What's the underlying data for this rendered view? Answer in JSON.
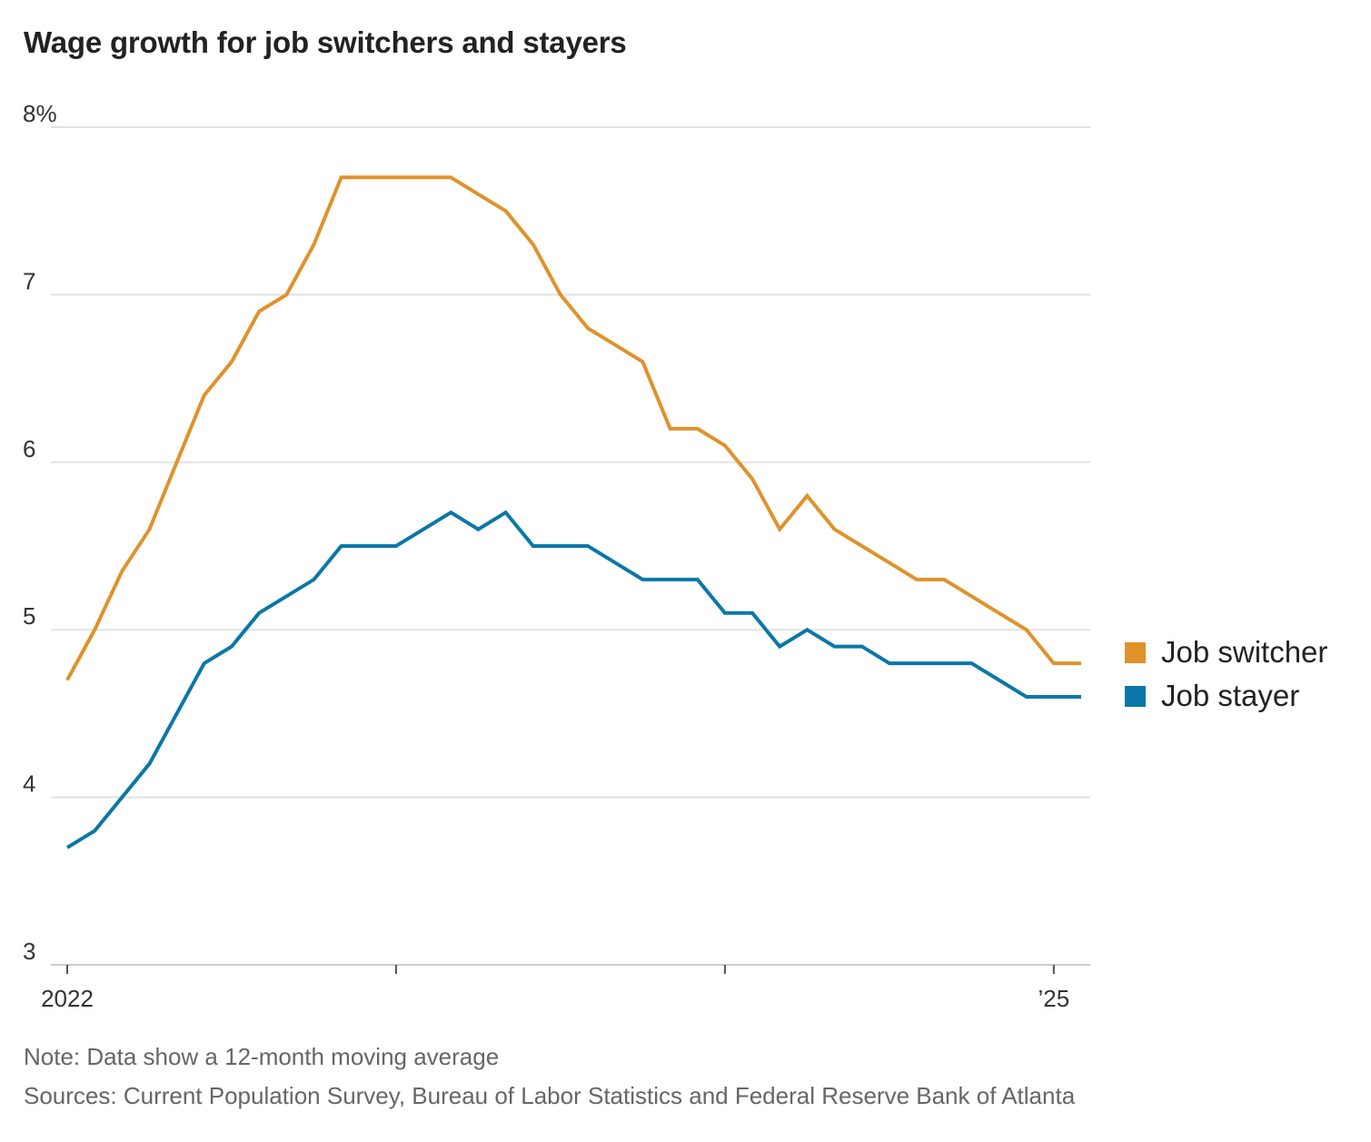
{
  "title": "Wage growth for job switchers and stayers",
  "note": "Note: Data show a 12-month moving average",
  "sources": "Sources: Current Population Survey, Bureau of Labor Statistics and Federal Reserve Bank of Atlanta",
  "colors": {
    "job_switcher": "#e0922b",
    "job_stayer": "#0a77a8",
    "grid": "#e2e2e2",
    "axis": "#cccccc"
  },
  "chart_data": {
    "type": "line",
    "xlabel": "",
    "ylabel": "",
    "ylim": [
      3,
      8
    ],
    "yticks": [
      3,
      4,
      5,
      6,
      7,
      8
    ],
    "ytick_labels": [
      "3",
      "4",
      "5",
      "6",
      "7",
      "8%"
    ],
    "x_start": "2022-01",
    "x_end": "2025-02",
    "xticks": [
      {
        "date": "2022-01",
        "label": "2022"
      },
      {
        "date": "2023-01",
        "label": ""
      },
      {
        "date": "2024-01",
        "label": ""
      },
      {
        "date": "2025-01",
        "label": "’25"
      }
    ],
    "grid": true,
    "legend_position": "right",
    "x": [
      "2022-01",
      "2022-02",
      "2022-03",
      "2022-04",
      "2022-05",
      "2022-06",
      "2022-07",
      "2022-08",
      "2022-09",
      "2022-10",
      "2022-11",
      "2022-12",
      "2023-01",
      "2023-02",
      "2023-03",
      "2023-04",
      "2023-05",
      "2023-06",
      "2023-07",
      "2023-08",
      "2023-09",
      "2023-10",
      "2023-11",
      "2023-12",
      "2024-01",
      "2024-02",
      "2024-03",
      "2024-04",
      "2024-05",
      "2024-06",
      "2024-07",
      "2024-08",
      "2024-09",
      "2024-10",
      "2024-11",
      "2024-12",
      "2025-01",
      "2025-02"
    ],
    "series": [
      {
        "name": "Job switcher",
        "values": [
          4.7,
          5.0,
          5.35,
          5.6,
          6.0,
          6.4,
          6.6,
          6.9,
          7.0,
          7.3,
          7.7,
          7.7,
          7.7,
          7.7,
          7.7,
          7.6,
          7.5,
          7.3,
          7.0,
          6.8,
          6.7,
          6.6,
          6.2,
          6.2,
          6.1,
          5.9,
          5.6,
          5.8,
          5.6,
          5.5,
          5.4,
          5.3,
          5.3,
          5.2,
          5.1,
          5.0,
          4.8,
          4.8
        ]
      },
      {
        "name": "Job stayer",
        "values": [
          3.7,
          3.8,
          4.0,
          4.2,
          4.5,
          4.8,
          4.9,
          5.1,
          5.2,
          5.3,
          5.5,
          5.5,
          5.5,
          5.6,
          5.7,
          5.6,
          5.7,
          5.5,
          5.5,
          5.5,
          5.4,
          5.3,
          5.3,
          5.3,
          5.1,
          5.1,
          4.9,
          5.0,
          4.9,
          4.9,
          4.8,
          4.8,
          4.8,
          4.8,
          4.7,
          4.6,
          4.6,
          4.6
        ]
      }
    ]
  }
}
